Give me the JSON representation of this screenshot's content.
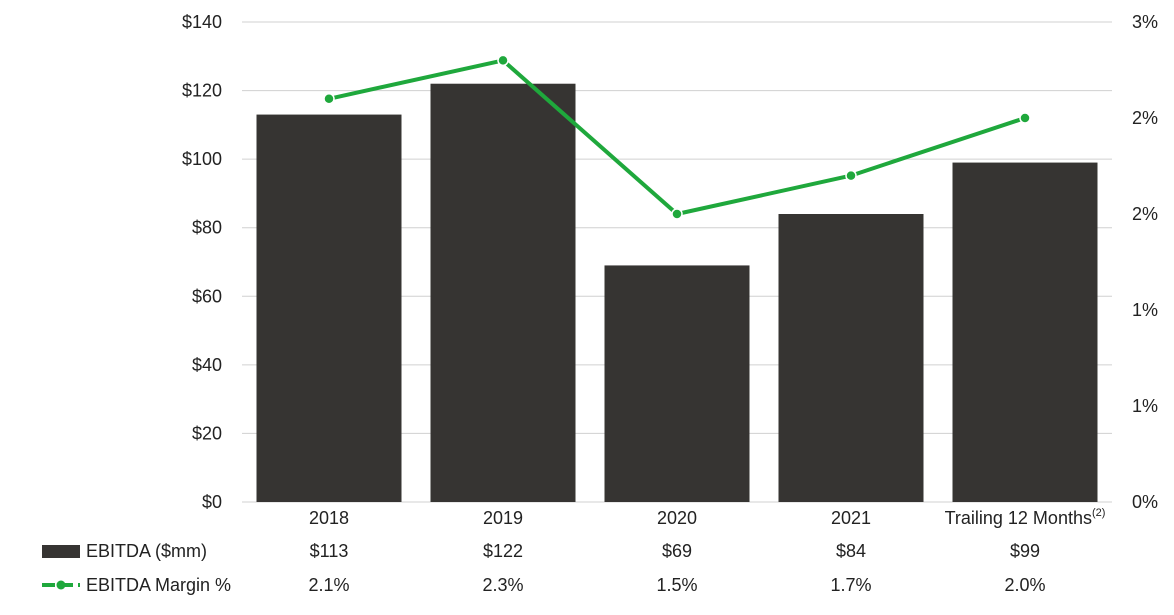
{
  "chart_data": {
    "type": "bar",
    "categories": [
      "2018",
      "2019",
      "2020",
      "2021",
      "Trailing 12 Months"
    ],
    "category_footnote": {
      "index": 4,
      "text": "(2)"
    },
    "series": [
      {
        "name": "EBITDA ($mm)",
        "axis": "left",
        "kind": "bar",
        "values": [
          113,
          122,
          69,
          84,
          99
        ],
        "color": "#363432"
      },
      {
        "name": "EBITDA Margin %",
        "axis": "right",
        "kind": "line",
        "values": [
          2.1,
          2.3,
          1.5,
          1.7,
          2.0
        ],
        "color": "#1fa83c"
      }
    ],
    "y_left": {
      "ylim": [
        0,
        140
      ],
      "ticks": [
        0,
        20,
        40,
        60,
        80,
        100,
        120,
        140
      ],
      "tick_labels": [
        "$0",
        "$20",
        "$40",
        "$60",
        "$80",
        "$100",
        "$120",
        "$140"
      ]
    },
    "y_right": {
      "ylim": [
        0,
        2.5
      ],
      "ticks": [
        0,
        0.5,
        1.0,
        1.5,
        2.0,
        2.5
      ],
      "tick_labels": [
        "0%",
        "1%",
        "1%",
        "2%",
        "2%",
        "3%"
      ]
    },
    "grid": true,
    "table": {
      "rows": [
        {
          "label": "EBITDA ($mm)",
          "values": [
            "$113",
            "$122",
            "$69",
            "$84",
            "$99"
          ]
        },
        {
          "label": "EBITDA Margin %",
          "values": [
            "2.1%",
            "2.3%",
            "1.5%",
            "1.7%",
            "2.0%"
          ]
        }
      ]
    }
  }
}
